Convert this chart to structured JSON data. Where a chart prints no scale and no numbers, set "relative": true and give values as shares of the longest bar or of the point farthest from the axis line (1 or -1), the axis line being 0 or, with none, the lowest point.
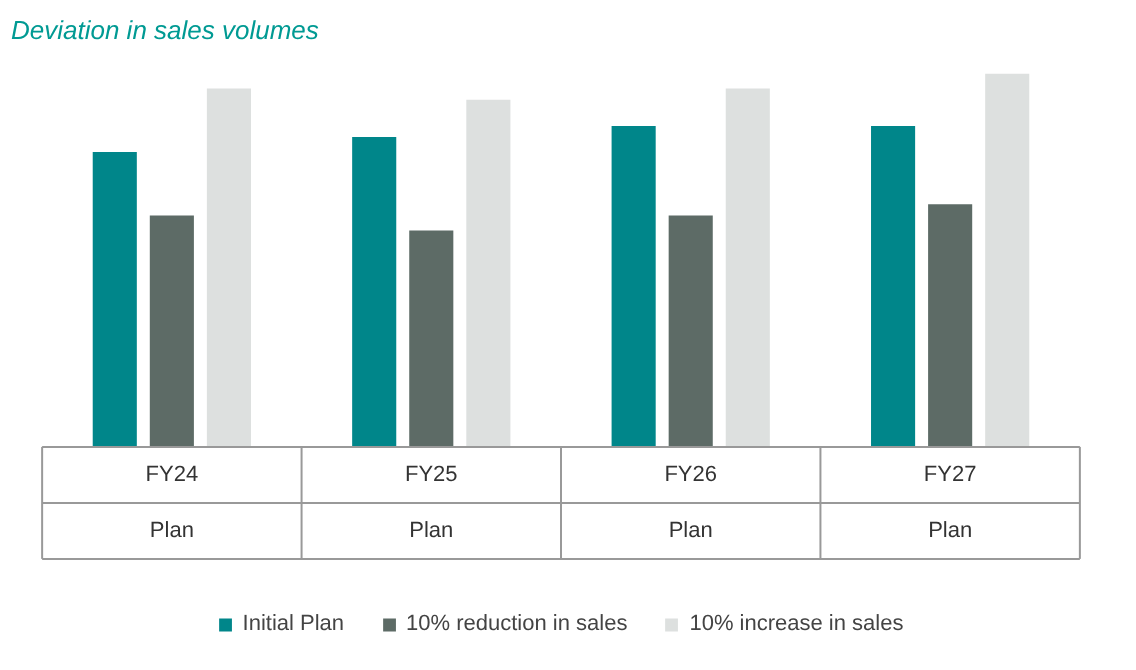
{
  "chart_data": {
    "type": "bar",
    "title": "Deviation in sales volumes",
    "relative": true,
    "categories": [
      "FY24\nPlan",
      "FY25\nPlan",
      "FY26\nPlan",
      "FY27\nPlan"
    ],
    "series": [
      {
        "name": "Initial Plan",
        "color": "#00868a",
        "values": [
          0.79,
          0.83,
          0.86,
          0.86
        ]
      },
      {
        "name": "10% reduction in sales",
        "color": "#5d6b66",
        "values": [
          0.62,
          0.58,
          0.62,
          0.65
        ]
      },
      {
        "name": "10% increase in sales",
        "color": "#dde0df",
        "values": [
          0.96,
          0.93,
          0.96,
          1.0
        ]
      }
    ],
    "legend": "bottom"
  }
}
